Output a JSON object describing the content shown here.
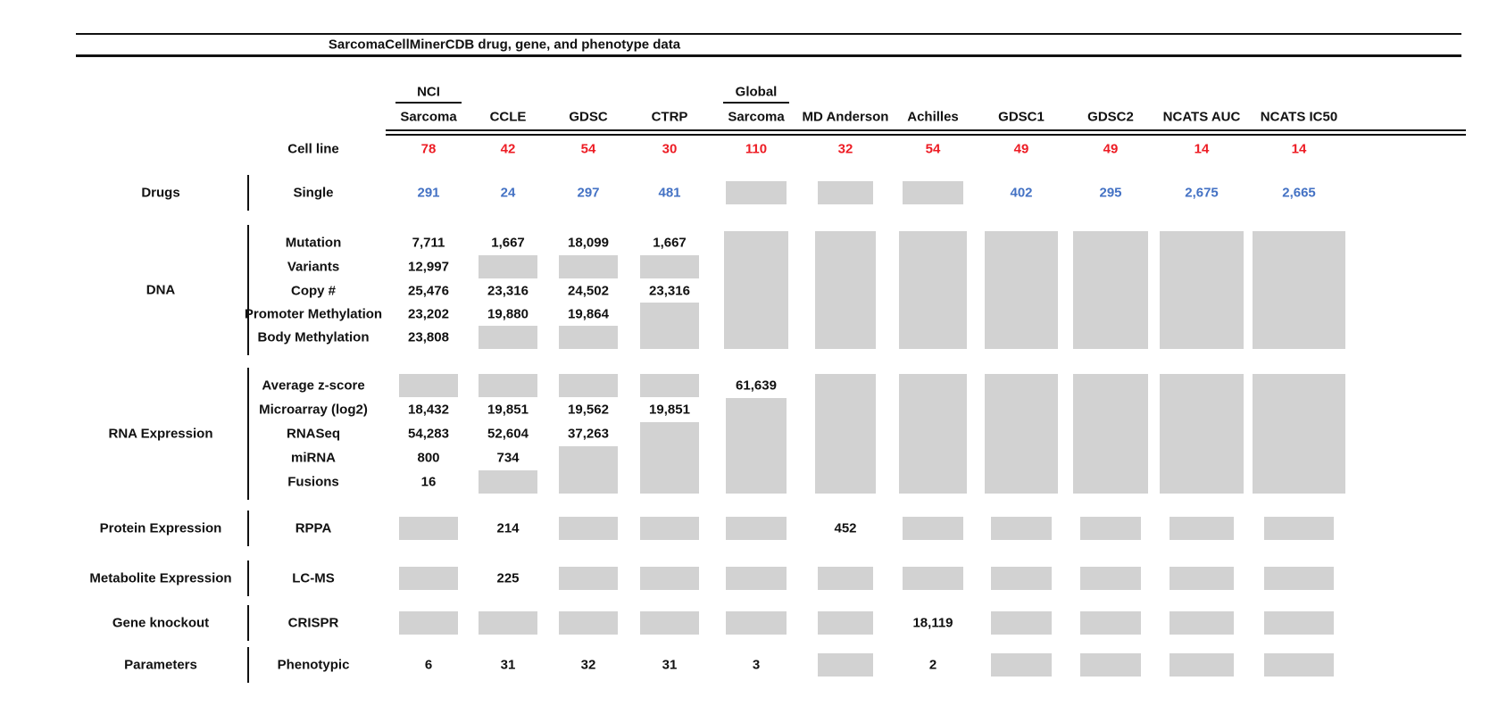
{
  "colors": {
    "red": "#ed1c24",
    "blue": "#4472c4",
    "gray_box": "#d2d2d2",
    "line": "#111111"
  },
  "chart_data": {
    "type": "table",
    "title": "SarcomaCellMinerCDB drug, gene, and phenotype data",
    "cell_line_label": "Cell line",
    "columns": [
      {
        "id": "nci-sarcoma",
        "lines": [
          "NCI",
          "Sarcoma"
        ],
        "cell_lines": 78
      },
      {
        "id": "ccle",
        "lines": [
          "CCLE"
        ],
        "cell_lines": 42
      },
      {
        "id": "gdsc",
        "lines": [
          "GDSC"
        ],
        "cell_lines": 54
      },
      {
        "id": "ctrp",
        "lines": [
          "CTRP"
        ],
        "cell_lines": 30
      },
      {
        "id": "global-sarcoma",
        "lines": [
          "Global",
          "Sarcoma"
        ],
        "cell_lines": 110
      },
      {
        "id": "md-anderson",
        "lines": [
          "MD Anderson"
        ],
        "cell_lines": 32
      },
      {
        "id": "achilles",
        "lines": [
          "Achilles"
        ],
        "cell_lines": 54
      },
      {
        "id": "gdsc1",
        "lines": [
          "GDSC1"
        ],
        "cell_lines": 49
      },
      {
        "id": "gdsc2",
        "lines": [
          "GDSC2"
        ],
        "cell_lines": 49
      },
      {
        "id": "ncats-auc",
        "lines": [
          "NCATS AUC"
        ],
        "cell_lines": 14
      },
      {
        "id": "ncats-ic50",
        "lines": [
          "NCATS IC50"
        ],
        "cell_lines": 14
      }
    ],
    "missing_marker": null,
    "row_groups": [
      {
        "category": "Drugs",
        "rows": [
          "Single"
        ],
        "value_color": "blue",
        "cells": [
          [
            291
          ],
          [
            24
          ],
          [
            297
          ],
          [
            481
          ],
          [
            null
          ],
          [
            null
          ],
          [
            null
          ],
          [
            402
          ],
          [
            295
          ],
          [
            2675
          ],
          [
            2665
          ]
        ]
      },
      {
        "category": "DNA",
        "rows": [
          "Mutation",
          "Variants",
          "Copy #",
          "Promoter Methylation",
          "Body Methylation"
        ],
        "value_color": "black",
        "cells": [
          [
            7711,
            12997,
            25476,
            23202,
            23808
          ],
          [
            1667,
            null,
            23316,
            19880,
            null
          ],
          [
            18099,
            null,
            24502,
            19864,
            null
          ],
          [
            1667,
            null,
            23316,
            null,
            null
          ],
          [
            null,
            null,
            null,
            null,
            null
          ],
          [
            null,
            null,
            null,
            null,
            null
          ],
          [
            null,
            null,
            null,
            null,
            null
          ],
          [
            null,
            null,
            null,
            null,
            null
          ],
          [
            null,
            null,
            null,
            null,
            null
          ],
          [
            null,
            null,
            null,
            null,
            null
          ],
          [
            null,
            null,
            null,
            null,
            null
          ]
        ]
      },
      {
        "category": "RNA Expression",
        "rows": [
          "Average z-score",
          "Microarray (log2)",
          "RNASeq",
          "miRNA",
          "Fusions"
        ],
        "value_color": "black",
        "cells": [
          [
            null,
            18432,
            54283,
            800,
            16
          ],
          [
            null,
            19851,
            52604,
            734,
            null
          ],
          [
            null,
            19562,
            37263,
            null,
            null
          ],
          [
            null,
            19851,
            null,
            null,
            null
          ],
          [
            61639,
            null,
            null,
            null,
            null
          ],
          [
            null,
            null,
            null,
            null,
            null
          ],
          [
            null,
            null,
            null,
            null,
            null
          ],
          [
            null,
            null,
            null,
            null,
            null
          ],
          [
            null,
            null,
            null,
            null,
            null
          ],
          [
            null,
            null,
            null,
            null,
            null
          ],
          [
            null,
            null,
            null,
            null,
            null
          ]
        ]
      },
      {
        "category": "Protein Expression",
        "rows": [
          "RPPA"
        ],
        "value_color": "black",
        "cells": [
          [
            null
          ],
          [
            214
          ],
          [
            null
          ],
          [
            null
          ],
          [
            null
          ],
          [
            452
          ],
          [
            null
          ],
          [
            null
          ],
          [
            null
          ],
          [
            null
          ],
          [
            null
          ]
        ]
      },
      {
        "category": "Metabolite Expression",
        "rows": [
          "LC-MS"
        ],
        "value_color": "black",
        "cells": [
          [
            null
          ],
          [
            225
          ],
          [
            null
          ],
          [
            null
          ],
          [
            null
          ],
          [
            null
          ],
          [
            null
          ],
          [
            null
          ],
          [
            null
          ],
          [
            null
          ],
          [
            null
          ]
        ]
      },
      {
        "category": "Gene knockout",
        "rows": [
          "CRISPR"
        ],
        "value_color": "black",
        "cells": [
          [
            null
          ],
          [
            null
          ],
          [
            null
          ],
          [
            null
          ],
          [
            null
          ],
          [
            null
          ],
          [
            18119
          ],
          [
            null
          ],
          [
            null
          ],
          [
            null
          ],
          [
            null
          ]
        ]
      },
      {
        "category": "Parameters",
        "rows": [
          "Phenotypic"
        ],
        "value_color": "black",
        "cells": [
          [
            6
          ],
          [
            31
          ],
          [
            32
          ],
          [
            31
          ],
          [
            3
          ],
          [
            null
          ],
          [
            2
          ],
          [
            null
          ],
          [
            null
          ],
          [
            null
          ],
          [
            null
          ]
        ]
      }
    ]
  }
}
